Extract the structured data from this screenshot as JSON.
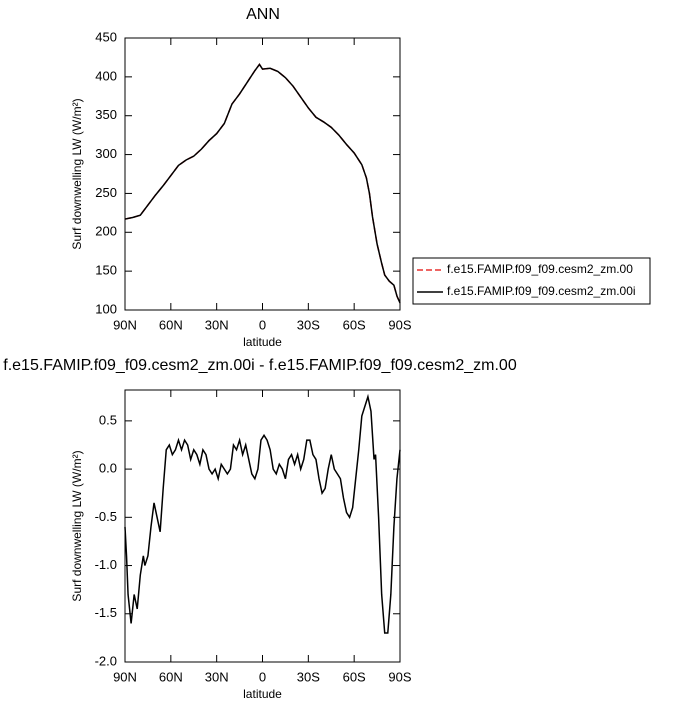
{
  "chart_data": [
    {
      "type": "line",
      "title": "ANN",
      "xlabel": "latitude",
      "ylabel": "Surf downwelling LW (W/m²)",
      "x": [
        90,
        85,
        80,
        75,
        70,
        65,
        60,
        55,
        50,
        45,
        40,
        35,
        30,
        25,
        20,
        15,
        10,
        5,
        2,
        0,
        -5,
        -10,
        -15,
        -20,
        -25,
        -30,
        -35,
        -40,
        -45,
        -50,
        -55,
        -60,
        -65,
        -68,
        -70,
        -72,
        -75,
        -78,
        -80,
        -83,
        -86,
        -88,
        -90
      ],
      "series": [
        {
          "name": "f.e15.FAMIP.f09_f09.cesm2_zm.00",
          "color": "#e8312f",
          "linestyle": "dashed",
          "values": [
            217,
            219,
            222,
            235,
            248,
            260,
            273,
            286,
            293,
            298,
            307,
            318,
            327,
            340,
            365,
            378,
            393,
            408,
            416,
            410,
            411,
            407,
            399,
            388,
            374,
            360,
            348,
            342,
            335,
            325,
            313,
            302,
            287,
            270,
            250,
            220,
            185,
            160,
            145,
            137,
            132,
            118,
            109
          ]
        },
        {
          "name": "f.e15.FAMIP.f09_f09.cesm2_zm.00i",
          "color": "#000000",
          "linestyle": "solid",
          "values": [
            217,
            219,
            222,
            235,
            248,
            260,
            273,
            286,
            293,
            298,
            307,
            318,
            327,
            340,
            365,
            378,
            393,
            408,
            416,
            410,
            411,
            407,
            399,
            388,
            374,
            360,
            348,
            342,
            335,
            325,
            313,
            302,
            287,
            270,
            250,
            220,
            185,
            160,
            145,
            137,
            132,
            118,
            109
          ]
        }
      ],
      "xlim": [
        90,
        -90
      ],
      "xticks": [
        {
          "value": 90,
          "label": "90N"
        },
        {
          "value": 60,
          "label": "60N"
        },
        {
          "value": 30,
          "label": "30N"
        },
        0,
        {
          "value": -30,
          "label": "30S"
        },
        {
          "value": -60,
          "label": "60S"
        },
        {
          "value": -90,
          "label": "90S"
        }
      ],
      "ylim": [
        100,
        450
      ],
      "yticks": [
        100,
        150,
        200,
        250,
        300,
        350,
        400,
        450
      ],
      "legend": "right"
    },
    {
      "type": "line",
      "title": "f.e15.FAMIP.f09_f09.cesm2_zm.00i - f.e15.FAMIP.f09_f09.cesm2_zm.00",
      "xlabel": "latitude",
      "ylabel": "Surf downwelling LW (W/m²)",
      "x": [
        90,
        89,
        88,
        86,
        84,
        82,
        80,
        78,
        77,
        75,
        73,
        71,
        69,
        67,
        65,
        63,
        61,
        59,
        57,
        55,
        53,
        51,
        49,
        47,
        45,
        43,
        41,
        39,
        37,
        35,
        33,
        31,
        29,
        27,
        25,
        23,
        21,
        19,
        17,
        15,
        13,
        11,
        9,
        7,
        5,
        3,
        1,
        -1,
        -3,
        -5,
        -7,
        -9,
        -11,
        -13,
        -15,
        -17,
        -19,
        -21,
        -23,
        -25,
        -27,
        -29,
        -31,
        -33,
        -35,
        -37,
        -39,
        -41,
        -43,
        -45,
        -47,
        -49,
        -51,
        -53,
        -55,
        -57,
        -59,
        -61,
        -63,
        -65,
        -67,
        -69,
        -71,
        -73,
        -74,
        -76,
        -78,
        -80,
        -82,
        -84,
        -86,
        -88,
        -90
      ],
      "series": [
        {
          "name": "f.e15.FAMIP.f09_f09.cesm2_zm.00i - f.e15.FAMIP.f09_f09.cesm2_zm.00",
          "color": "#000000",
          "linestyle": "solid",
          "values": [
            -0.6,
            -0.9,
            -1.3,
            -1.6,
            -1.3,
            -1.45,
            -1.1,
            -0.9,
            -1.0,
            -0.9,
            -0.6,
            -0.35,
            -0.5,
            -0.65,
            -0.2,
            0.2,
            0.25,
            0.15,
            0.2,
            0.3,
            0.2,
            0.3,
            0.25,
            0.1,
            0.2,
            0.15,
            0.05,
            0.2,
            0.15,
            0.0,
            -0.05,
            0.0,
            -0.1,
            0.05,
            0.0,
            -0.05,
            0.0,
            0.25,
            0.2,
            0.3,
            0.15,
            0.25,
            0.1,
            -0.05,
            -0.1,
            0.0,
            0.3,
            0.35,
            0.3,
            0.2,
            0.0,
            -0.05,
            0.05,
            0.0,
            -0.1,
            0.1,
            0.15,
            0.05,
            0.15,
            0.0,
            0.1,
            0.3,
            0.3,
            0.15,
            0.1,
            -0.1,
            -0.25,
            -0.2,
            0.0,
            0.15,
            0.0,
            -0.05,
            -0.1,
            -0.3,
            -0.45,
            -0.5,
            -0.4,
            -0.1,
            0.2,
            0.55,
            0.65,
            0.75,
            0.6,
            0.1,
            0.15,
            -0.5,
            -1.3,
            -1.7,
            -1.7,
            -1.3,
            -0.6,
            -0.1,
            0.2
          ]
        }
      ],
      "xlim": [
        90,
        -90
      ],
      "xticks": [
        {
          "value": 90,
          "label": "90N"
        },
        {
          "value": 60,
          "label": "60N"
        },
        {
          "value": 30,
          "label": "30N"
        },
        0,
        {
          "value": -30,
          "label": "30S"
        },
        {
          "value": -60,
          "label": "60S"
        },
        {
          "value": -90,
          "label": "90S"
        }
      ],
      "ylim": [
        -2.0,
        0.82
      ],
      "yticks": [
        {
          "value": -2,
          "label": "-2.0"
        },
        -1.5,
        {
          "value": -1,
          "label": "-1.0"
        },
        -0.5,
        {
          "value": 0,
          "label": "0.0"
        },
        0.5
      ]
    }
  ]
}
